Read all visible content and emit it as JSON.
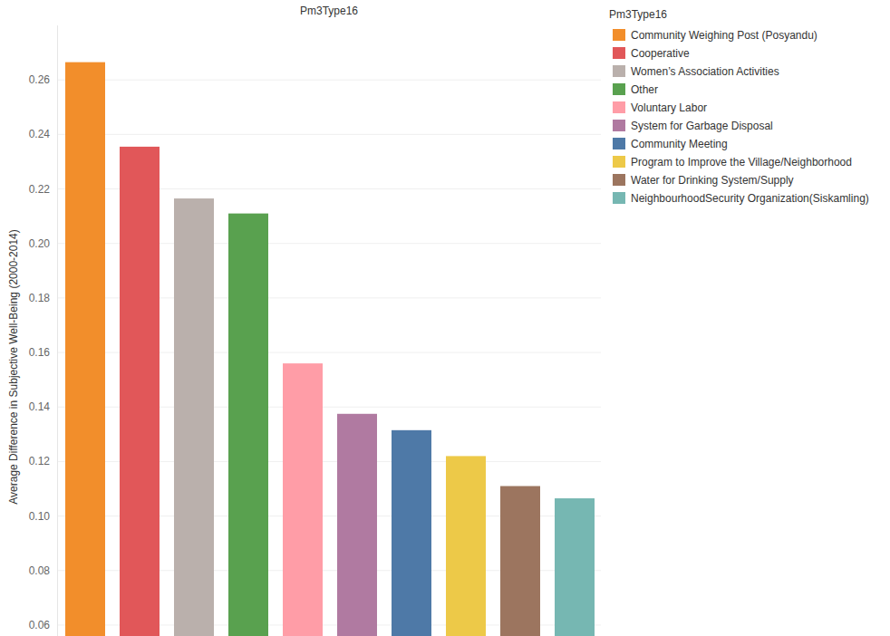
{
  "chart_data": {
    "type": "bar",
    "title": "Pm3Type16",
    "legend_title": "Pm3Type16",
    "y_label": "Average Difference in Subjective Well-Being (2000-2014)",
    "categories": [
      "Community Weighing Post (Posyandu)",
      "Cooperative",
      "Women’s Association Activities",
      "Other",
      "Voluntary Labor",
      "System for Garbage Disposal",
      "Community Meeting",
      "Program to Improve the Village/Neighborhood",
      "Water for Drinking System/Supply",
      "NeighbourhoodSecurity Organization(Siskamling)"
    ],
    "values": [
      0.2665,
      0.2355,
      0.2165,
      0.211,
      0.156,
      0.1375,
      0.1315,
      0.122,
      0.111,
      0.1065
    ],
    "colors": [
      "#f28e2b",
      "#e15759",
      "#bab0ac",
      "#59a14f",
      "#ff9da7",
      "#b07aa1",
      "#4e79a7",
      "#edc948",
      "#9c755f",
      "#76b7b2"
    ],
    "ylim": [
      0.056,
      0.28
    ],
    "yticks": [
      0.06,
      0.08,
      {
        "value": 0.1,
        "label": "0.10"
      },
      0.12,
      0.14,
      0.16,
      0.18,
      {
        "value": 0.2,
        "label": "0.20"
      },
      0.22,
      0.24,
      0.26
    ],
    "grid": true,
    "legend": "top-right",
    "tick_labels": "y"
  }
}
